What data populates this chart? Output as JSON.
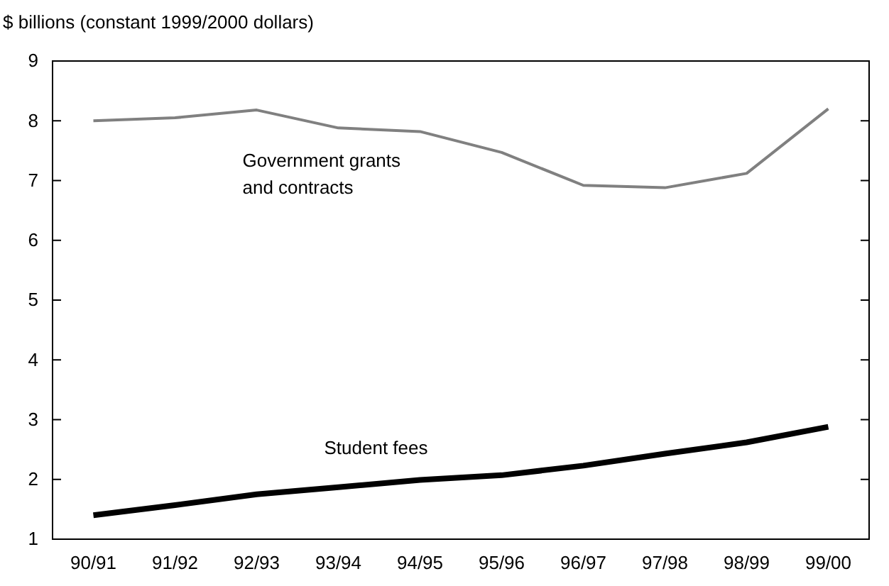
{
  "chart_data": {
    "type": "line",
    "ylabel": "$ billions (constant 1999/2000 dollars)",
    "categories": [
      "90/91",
      "91/92",
      "92/93",
      "93/94",
      "94/95",
      "95/96",
      "96/97",
      "97/98",
      "98/99",
      "99/00"
    ],
    "ylim": [
      1,
      9
    ],
    "yticks": [
      1,
      2,
      3,
      4,
      5,
      6,
      7,
      8,
      9
    ],
    "grid": false,
    "marker": "none",
    "line_style": "solid",
    "series": [
      {
        "name": "Government grants and contracts",
        "color": "#808080",
        "values": [
          8.0,
          8.05,
          8.18,
          7.88,
          7.82,
          7.47,
          6.92,
          6.88,
          7.12,
          8.2
        ]
      },
      {
        "name": "Student fees",
        "color": "#000000",
        "values": [
          1.4,
          1.57,
          1.75,
          1.87,
          1.99,
          2.07,
          2.23,
          2.43,
          2.62,
          2.88
        ]
      }
    ]
  }
}
